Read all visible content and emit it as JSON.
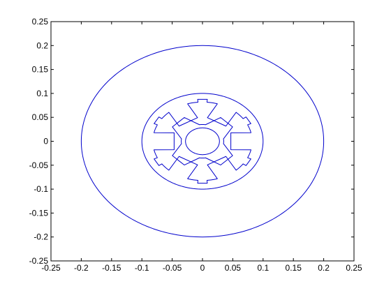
{
  "chart_data": {
    "type": "line",
    "title": "",
    "xlabel": "",
    "ylabel": "",
    "xlim": [
      -0.25,
      0.25
    ],
    "ylim": [
      -0.25,
      0.25
    ],
    "grid": false,
    "line_color": "#0000cc",
    "x_ticks": [
      -0.25,
      -0.2,
      -0.15,
      -0.1,
      -0.05,
      0,
      0.05,
      0.1,
      0.15,
      0.2,
      0.25
    ],
    "x_tick_labels": [
      "-0.25",
      "-0.2",
      "-0.15",
      "-0.1",
      "-0.05",
      "0",
      "0.05",
      "0.1",
      "0.15",
      "0.2",
      "0.25"
    ],
    "y_ticks": [
      0.25,
      0.2,
      0.15,
      0.1,
      0.05,
      0,
      -0.05,
      -0.1,
      -0.15,
      -0.2,
      -0.25
    ],
    "y_tick_labels": [
      "0.25",
      "0.2",
      "0.15",
      "0.1",
      "0.05",
      "0",
      "-0.05",
      "-0.1",
      "-0.15",
      "-0.2",
      "-0.25"
    ],
    "series": [
      {
        "kind": "circle",
        "center": [
          0,
          0
        ],
        "radius": 0.2
      },
      {
        "kind": "circle",
        "center": [
          0,
          0
        ],
        "radius": 0.1
      },
      {
        "kind": "circle",
        "center": [
          0,
          0
        ],
        "radius": 0.028
      },
      {
        "kind": "stator-teeth",
        "center": [
          0,
          0
        ],
        "count": 6,
        "bore_radius": 0.082,
        "slot_outer_radius": 0.088,
        "tooth_tip_radius": 0.05,
        "tooth_half_width_outer": 0.018,
        "tooth_half_width_inner": 0.008
      },
      {
        "kind": "rotor-poles",
        "center": [
          0,
          0
        ],
        "count": 4,
        "pole_tip_radius": 0.058,
        "root_radius": 0.035,
        "pole_half_width": 0.014
      }
    ]
  }
}
